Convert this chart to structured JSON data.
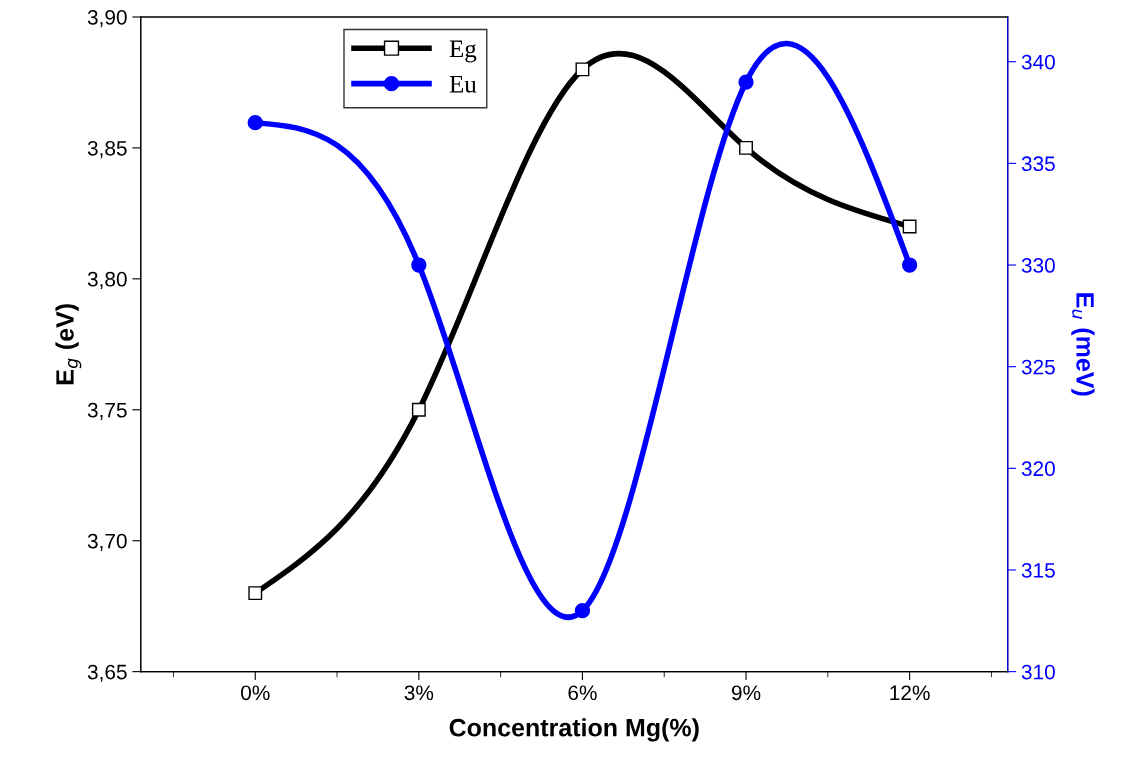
{
  "chart_data": {
    "type": "line",
    "xlabel": "Concentration Mg(%)",
    "ylabel": "E$_{g}$ (eV)",
    "y2label": "E$_{u}$ (meV)",
    "categories": [
      "0%",
      "3%",
      "6%",
      "9%",
      "12%"
    ],
    "series": [
      {
        "name": "Eg",
        "color": "#000000",
        "marker": "square",
        "values": [
          3.68,
          3.75,
          3.88,
          3.85,
          3.82
        ]
      },
      {
        "name": "Eu",
        "color": "#0000ff",
        "marker": "circle",
        "axis": "y2",
        "values": [
          337,
          330,
          313,
          339,
          330
        ]
      }
    ],
    "ylim": [
      3.65,
      3.9
    ],
    "yticks": [
      {
        "value": 3.65,
        "label": "3,65"
      },
      {
        "value": 3.7,
        "label": "3,70"
      },
      {
        "value": 3.75,
        "label": "3,75"
      },
      {
        "value": 3.8,
        "label": "3,80"
      },
      {
        "value": 3.85,
        "label": "3,85"
      },
      {
        "value": 3.9,
        "label": "3,90"
      }
    ],
    "y2lim": [
      310,
      342.2
    ],
    "y2ticks": [
      310,
      315,
      320,
      325,
      330,
      335,
      340
    ],
    "legend": "top left",
    "grid": false,
    "line_style": "solid"
  }
}
